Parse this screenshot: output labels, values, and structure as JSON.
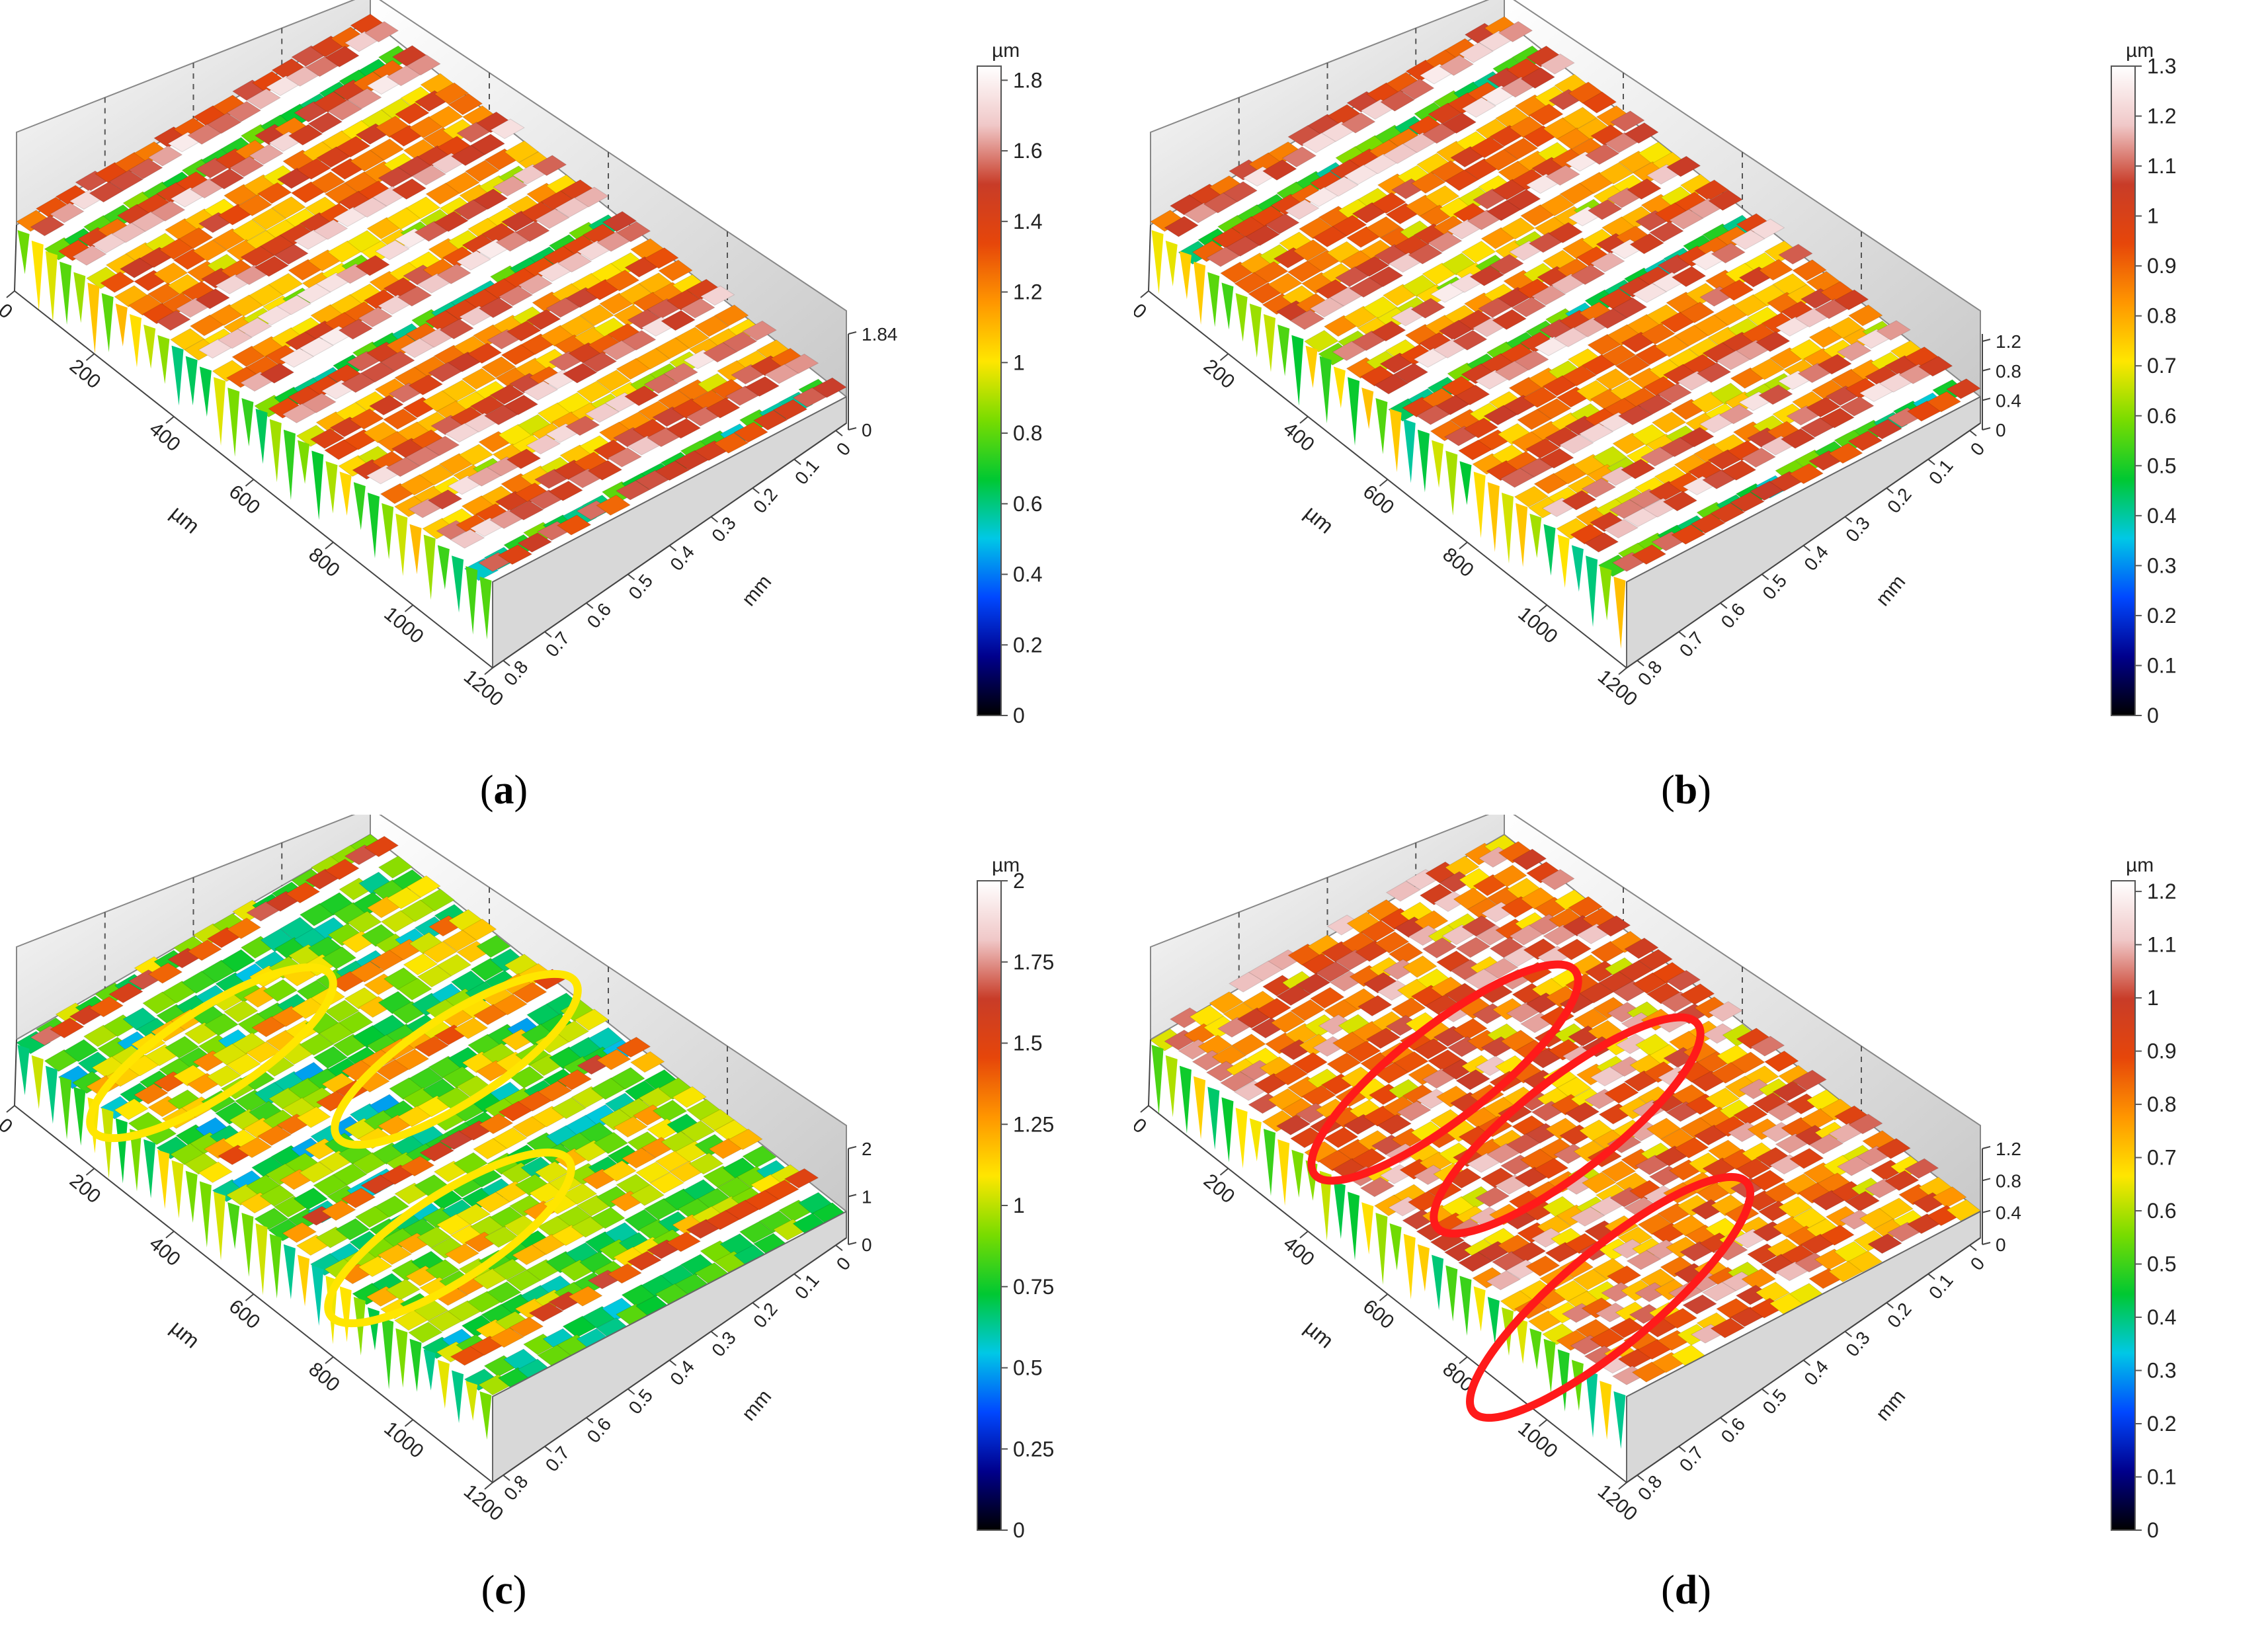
{
  "figure": {
    "panels": [
      {
        "id": "a",
        "caption_letter": "a",
        "caption_open": "(",
        "caption_close": ")",
        "x_axis": {
          "label": "µm",
          "ticks": [
            "0",
            "200",
            "400",
            "600",
            "800",
            "1000",
            "1200"
          ],
          "range": [
            0,
            1200
          ]
        },
        "y_axis": {
          "label": "mm",
          "ticks": [
            "0",
            "0.1",
            "0.2",
            "0.3",
            "0.4",
            "0.5",
            "0.6",
            "0.7",
            "0.8"
          ],
          "range": [
            0,
            0.85
          ]
        },
        "z_axis": {
          "ticks": [
            "0",
            "1.84"
          ],
          "range": [
            0,
            1.84
          ]
        },
        "colorbar": {
          "unit": "µm",
          "ticks": [
            "0",
            "0.2",
            "0.4",
            "0.6",
            "0.8",
            "1",
            "1.2",
            "1.4",
            "1.6",
            "1.8"
          ],
          "range": [
            0,
            1.84
          ]
        },
        "surface": {
          "pattern": "regular-ridges",
          "dominant_color": "#c8501e",
          "secondary_color": "#3fa83a"
        },
        "annotations": []
      },
      {
        "id": "b",
        "caption_letter": "b",
        "caption_open": "(",
        "caption_close": ")",
        "x_axis": {
          "label": "µm",
          "ticks": [
            "0",
            "200",
            "400",
            "600",
            "800",
            "1000",
            "1200"
          ],
          "range": [
            0,
            1200
          ]
        },
        "y_axis": {
          "label": "mm",
          "ticks": [
            "0",
            "0.1",
            "0.2",
            "0.3",
            "0.4",
            "0.5",
            "0.6",
            "0.7",
            "0.8"
          ],
          "range": [
            0,
            0.85
          ]
        },
        "z_axis": {
          "ticks": [
            "0",
            "0.4",
            "0.8",
            "1.2"
          ],
          "range": [
            0,
            1.3
          ]
        },
        "colorbar": {
          "unit": "µm",
          "ticks": [
            "0",
            "0.1",
            "0.2",
            "0.3",
            "0.4",
            "0.5",
            "0.6",
            "0.7",
            "0.8",
            "0.9",
            "1",
            "1.1",
            "1.2",
            "1.3"
          ],
          "range": [
            0,
            1.3
          ]
        },
        "surface": {
          "pattern": "regular-ridges",
          "dominant_color": "#b8541e",
          "secondary_color": "#2fa43a"
        },
        "annotations": []
      },
      {
        "id": "c",
        "caption_letter": "c",
        "caption_open": "(",
        "caption_close": ")",
        "x_axis": {
          "label": "µm",
          "ticks": [
            "0",
            "200",
            "400",
            "600",
            "800",
            "1000",
            "1200"
          ],
          "range": [
            0,
            1200
          ]
        },
        "y_axis": {
          "label": "mm",
          "ticks": [
            "0",
            "0.1",
            "0.2",
            "0.3",
            "0.4",
            "0.5",
            "0.6",
            "0.7",
            "0.8"
          ],
          "range": [
            0,
            0.85
          ]
        },
        "z_axis": {
          "ticks": [
            "0",
            "1",
            "2"
          ],
          "range": [
            0,
            2
          ]
        },
        "colorbar": {
          "unit": "µm",
          "ticks": [
            "0",
            "0.25",
            "0.5",
            "0.75",
            "1",
            "1.25",
            "1.5",
            "1.75",
            "2"
          ],
          "range": [
            0,
            2
          ]
        },
        "surface": {
          "pattern": "worn-ridges",
          "dominant_color": "#3aa33a",
          "secondary_color": "#2a7fb8"
        },
        "annotations": [
          {
            "shape": "ellipse",
            "color": "#ffe600"
          },
          {
            "shape": "ellipse",
            "color": "#ffe600"
          },
          {
            "shape": "ellipse",
            "color": "#ffe600"
          }
        ]
      },
      {
        "id": "d",
        "caption_letter": "d",
        "caption_open": "(",
        "caption_close": ")",
        "x_axis": {
          "label": "µm",
          "ticks": [
            "0",
            "200",
            "400",
            "600",
            "800",
            "1000",
            "1200"
          ],
          "range": [
            0,
            1200
          ]
        },
        "y_axis": {
          "label": "mm",
          "ticks": [
            "0",
            "0.1",
            "0.2",
            "0.3",
            "0.4",
            "0.5",
            "0.6",
            "0.7",
            "0.8"
          ],
          "range": [
            0,
            0.85
          ]
        },
        "z_axis": {
          "ticks": [
            "0",
            "0.4",
            "0.8",
            "1.2"
          ],
          "range": [
            0,
            1.2
          ]
        },
        "colorbar": {
          "unit": "µm",
          "ticks": [
            "0",
            "0.1",
            "0.2",
            "0.3",
            "0.4",
            "0.5",
            "0.6",
            "0.7",
            "0.8",
            "0.9",
            "1",
            "1.1",
            "1.2"
          ],
          "range": [
            0,
            1.22
          ]
        },
        "surface": {
          "pattern": "rough-pitted",
          "dominant_color": "#b8501e",
          "secondary_color": "#3a9f3a"
        },
        "annotations": [
          {
            "shape": "ellipse",
            "color": "#ff1a1a"
          },
          {
            "shape": "ellipse",
            "color": "#ff1a1a"
          },
          {
            "shape": "ellipse",
            "color": "#ff1a1a"
          }
        ]
      }
    ],
    "colormap": [
      "#000000",
      "#00008c",
      "#0048ff",
      "#00c8e6",
      "#00c832",
      "#78dc00",
      "#ffe600",
      "#ff9600",
      "#e6460a",
      "#c83c28",
      "#f0c8c8",
      "#ffffff"
    ]
  },
  "chart_data": [
    {
      "type": "surface3d",
      "panel": "a",
      "x_label": "µm",
      "y_label": "mm",
      "x_range": [
        0,
        1200
      ],
      "y_range": [
        0,
        0.85
      ],
      "z_range": [
        0,
        1.84
      ],
      "z_ticks": [
        0,
        1.84
      ],
      "colorbar_unit": "µm",
      "colorbar_ticks": [
        0,
        0.2,
        0.4,
        0.6,
        0.8,
        1,
        1.2,
        1.4,
        1.6,
        1.8
      ]
    },
    {
      "type": "surface3d",
      "panel": "b",
      "x_label": "µm",
      "y_label": "mm",
      "x_range": [
        0,
        1200
      ],
      "y_range": [
        0,
        0.85
      ],
      "z_range": [
        0,
        1.3
      ],
      "z_ticks": [
        0,
        0.4,
        0.8,
        1.2
      ],
      "colorbar_unit": "µm",
      "colorbar_ticks": [
        0,
        0.1,
        0.2,
        0.3,
        0.4,
        0.5,
        0.6,
        0.7,
        0.8,
        0.9,
        1,
        1.1,
        1.2,
        1.3
      ]
    },
    {
      "type": "surface3d",
      "panel": "c",
      "x_label": "µm",
      "y_label": "mm",
      "x_range": [
        0,
        1200
      ],
      "y_range": [
        0,
        0.85
      ],
      "z_range": [
        0,
        2
      ],
      "z_ticks": [
        0,
        1,
        2
      ],
      "colorbar_unit": "µm",
      "colorbar_ticks": [
        0,
        0.25,
        0.5,
        0.75,
        1,
        1.25,
        1.5,
        1.75,
        2
      ]
    },
    {
      "type": "surface3d",
      "panel": "d",
      "x_label": "µm",
      "y_label": "mm",
      "x_range": [
        0,
        1200
      ],
      "y_range": [
        0,
        0.85
      ],
      "z_range": [
        0,
        1.2
      ],
      "z_ticks": [
        0,
        0.4,
        0.8,
        1.2
      ],
      "colorbar_unit": "µm",
      "colorbar_ticks": [
        0,
        0.1,
        0.2,
        0.3,
        0.4,
        0.5,
        0.6,
        0.7,
        0.8,
        0.9,
        1,
        1.1,
        1.2
      ]
    }
  ]
}
